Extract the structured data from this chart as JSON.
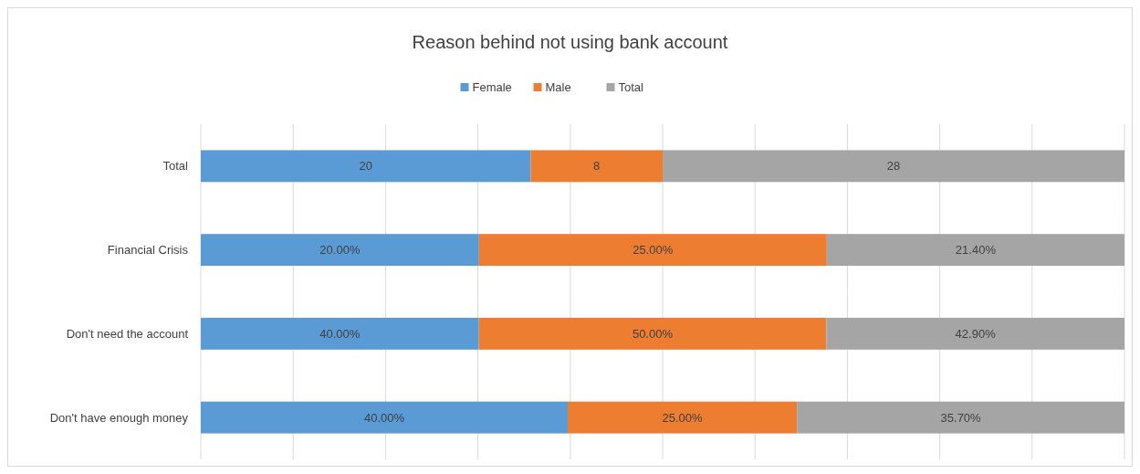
{
  "chart_data": [
    {
      "type": "bar",
      "title": "Reason behind not using bank account",
      "orientation": "horizontal",
      "stacked": true,
      "grid": "x",
      "legend": "top",
      "categories": [
        "Total"
      ],
      "series": [
        {
          "name": "Female",
          "color": "#5b9bd5",
          "values": [
            20
          ],
          "value_labels": [
            "20"
          ]
        },
        {
          "name": "Male",
          "color": "#ed7d31",
          "values": [
            8
          ],
          "value_labels": [
            "8"
          ]
        },
        {
          "name": "Total",
          "color": "#a5a5a5",
          "values": [
            28
          ],
          "value_labels": [
            "28"
          ]
        }
      ]
    },
    {
      "type": "bar",
      "orientation": "horizontal",
      "stacked": true,
      "grid": "x",
      "categories": [
        "Financial Crisis"
      ],
      "series": [
        {
          "color": "#5b9bd5",
          "values": [
            20
          ],
          "value_labels": [
            "20.00%"
          ]
        },
        {
          "color": "#ed7d31",
          "values": [
            25
          ],
          "value_labels": [
            "25.00%"
          ]
        },
        {
          "color": "#a5a5a5",
          "values": [
            21.4
          ],
          "value_labels": [
            "21.40%"
          ]
        }
      ]
    },
    {
      "type": "bar",
      "orientation": "horizontal",
      "stacked": true,
      "grid": "x",
      "categories": [
        "Don't need the account"
      ],
      "series": [
        {
          "color": "#5b9bd5",
          "values": [
            40
          ],
          "value_labels": [
            "40.00%"
          ]
        },
        {
          "color": "#ed7d31",
          "values": [
            50
          ],
          "value_labels": [
            "50.00%"
          ]
        },
        {
          "color": "#a5a5a5",
          "values": [
            42.9
          ],
          "value_labels": [
            "42.90%"
          ]
        }
      ]
    },
    {
      "type": "bar",
      "orientation": "horizontal",
      "stacked": true,
      "grid": "x",
      "categories": [
        "Don't have enough money"
      ],
      "series": [
        {
          "color": "#5b9bd5",
          "values": [
            40
          ],
          "value_labels": [
            "40.00%"
          ]
        },
        {
          "color": "#ed7d31",
          "values": [
            25
          ],
          "value_labels": [
            "25.00%"
          ]
        },
        {
          "color": "#a5a5a5",
          "values": [
            35.7
          ],
          "value_labels": [
            "35.70%"
          ]
        }
      ]
    }
  ]
}
